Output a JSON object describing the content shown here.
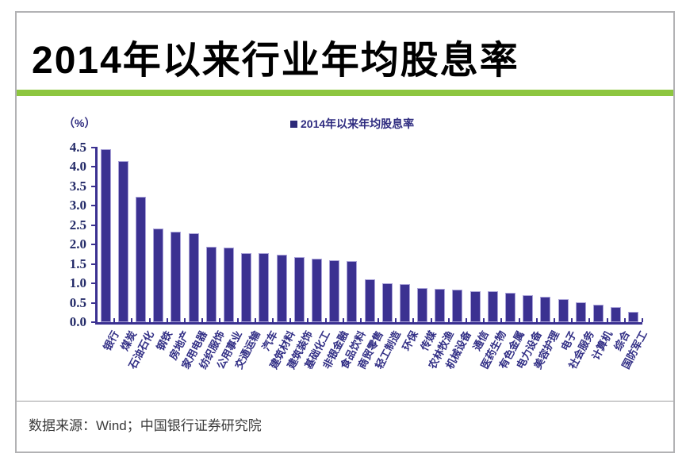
{
  "page": {
    "title": "2014年以来行业年均股息率",
    "source_note": "数据来源：Wind；中国银行证券研究院"
  },
  "chart_data": {
    "type": "bar",
    "title": "2014年以来行业年均股息率",
    "unit_label": "（%）",
    "legend": [
      "2014年以来年均股息率"
    ],
    "legend_position": "top",
    "grid": false,
    "xlabel": "",
    "ylabel": "%",
    "ylim": [
      0,
      4.5
    ],
    "y_ticks": [
      4.5,
      4.0,
      3.5,
      3.0,
      2.5,
      2.0,
      1.5,
      1.0,
      0.5,
      0.0
    ],
    "categories": [
      "银行",
      "煤炭",
      "石油石化",
      "钢铁",
      "房地产",
      "家用电器",
      "纺织服饰",
      "公用事业",
      "交通运输",
      "汽车",
      "建筑材料",
      "建筑装饰",
      "基础化工",
      "非银金融",
      "食品饮料",
      "商贸零售",
      "轻工制造",
      "环保",
      "传媒",
      "农林牧渔",
      "机械设备",
      "通信",
      "医药生物",
      "有色金属",
      "电力设备",
      "美容护理",
      "电子",
      "社会服务",
      "计算机",
      "综合",
      "国防军工"
    ],
    "values": [
      4.45,
      4.15,
      3.22,
      2.4,
      2.32,
      2.28,
      1.94,
      1.92,
      1.78,
      1.77,
      1.74,
      1.67,
      1.63,
      1.6,
      1.57,
      1.1,
      0.99,
      0.97,
      0.88,
      0.85,
      0.84,
      0.8,
      0.79,
      0.76,
      0.7,
      0.65,
      0.59,
      0.51,
      0.45,
      0.38,
      0.26
    ],
    "colors": {
      "bar": "#3b3191",
      "bar_border": "#a9a2d8",
      "axis": "#3b3191",
      "y_tick_label": "#232a68",
      "category_label": "#312e85",
      "legend_text": "#2f2c80",
      "accent_green": "#8dc63f",
      "title_text": "#000000"
    }
  }
}
